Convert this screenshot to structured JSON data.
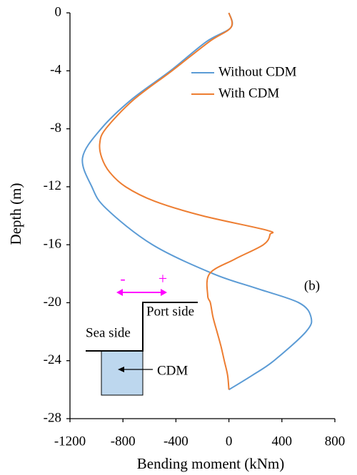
{
  "chart_data": {
    "type": "line",
    "xlabel": "Bending moment (kNm)",
    "ylabel": "Depth (m)",
    "xlim": [
      -1200,
      800
    ],
    "xticks": [
      -1200,
      -800,
      -400,
      0,
      400,
      800
    ],
    "ylim": [
      -28,
      0
    ],
    "yticks": [
      0,
      -4,
      -8,
      -12,
      -16,
      -20,
      -24,
      -28
    ],
    "legend": "upper right",
    "series": [
      {
        "name": "Without CDM",
        "color": "#5b9bd5",
        "x": [
          0,
          16,
          -172,
          -442,
          -738,
          -965,
          -1105,
          -1035,
          -927,
          -577,
          -119,
          205,
          528,
          620,
          582,
          340,
          178,
          0
        ],
        "values": [
          0,
          -1,
          -2,
          -4,
          -6,
          -8,
          -10,
          -12,
          -13.5,
          -16,
          -18,
          -19,
          -20,
          -21,
          -22,
          -24,
          -25,
          -26
        ]
      },
      {
        "name": "With CDM",
        "color": "#ed7d31",
        "x": [
          0,
          16,
          -150,
          -430,
          -720,
          -930,
          -975,
          -960,
          -900,
          -780,
          -560,
          -200,
          286,
          310,
          260,
          43,
          -146,
          -160,
          -140,
          -120,
          -90,
          -60,
          -35,
          -10,
          0
        ],
        "values": [
          0,
          -1,
          -2,
          -4,
          -6,
          -8,
          -9,
          -10,
          -11,
          -12,
          -13,
          -14,
          -15,
          -15.3,
          -16,
          -17,
          -18,
          -19.5,
          -20,
          -21,
          -22,
          -23,
          -24,
          -25,
          -26
        ]
      }
    ],
    "annotations": [
      "(b)",
      "Port side",
      "Sea side",
      "CDM",
      "-",
      "+"
    ]
  }
}
